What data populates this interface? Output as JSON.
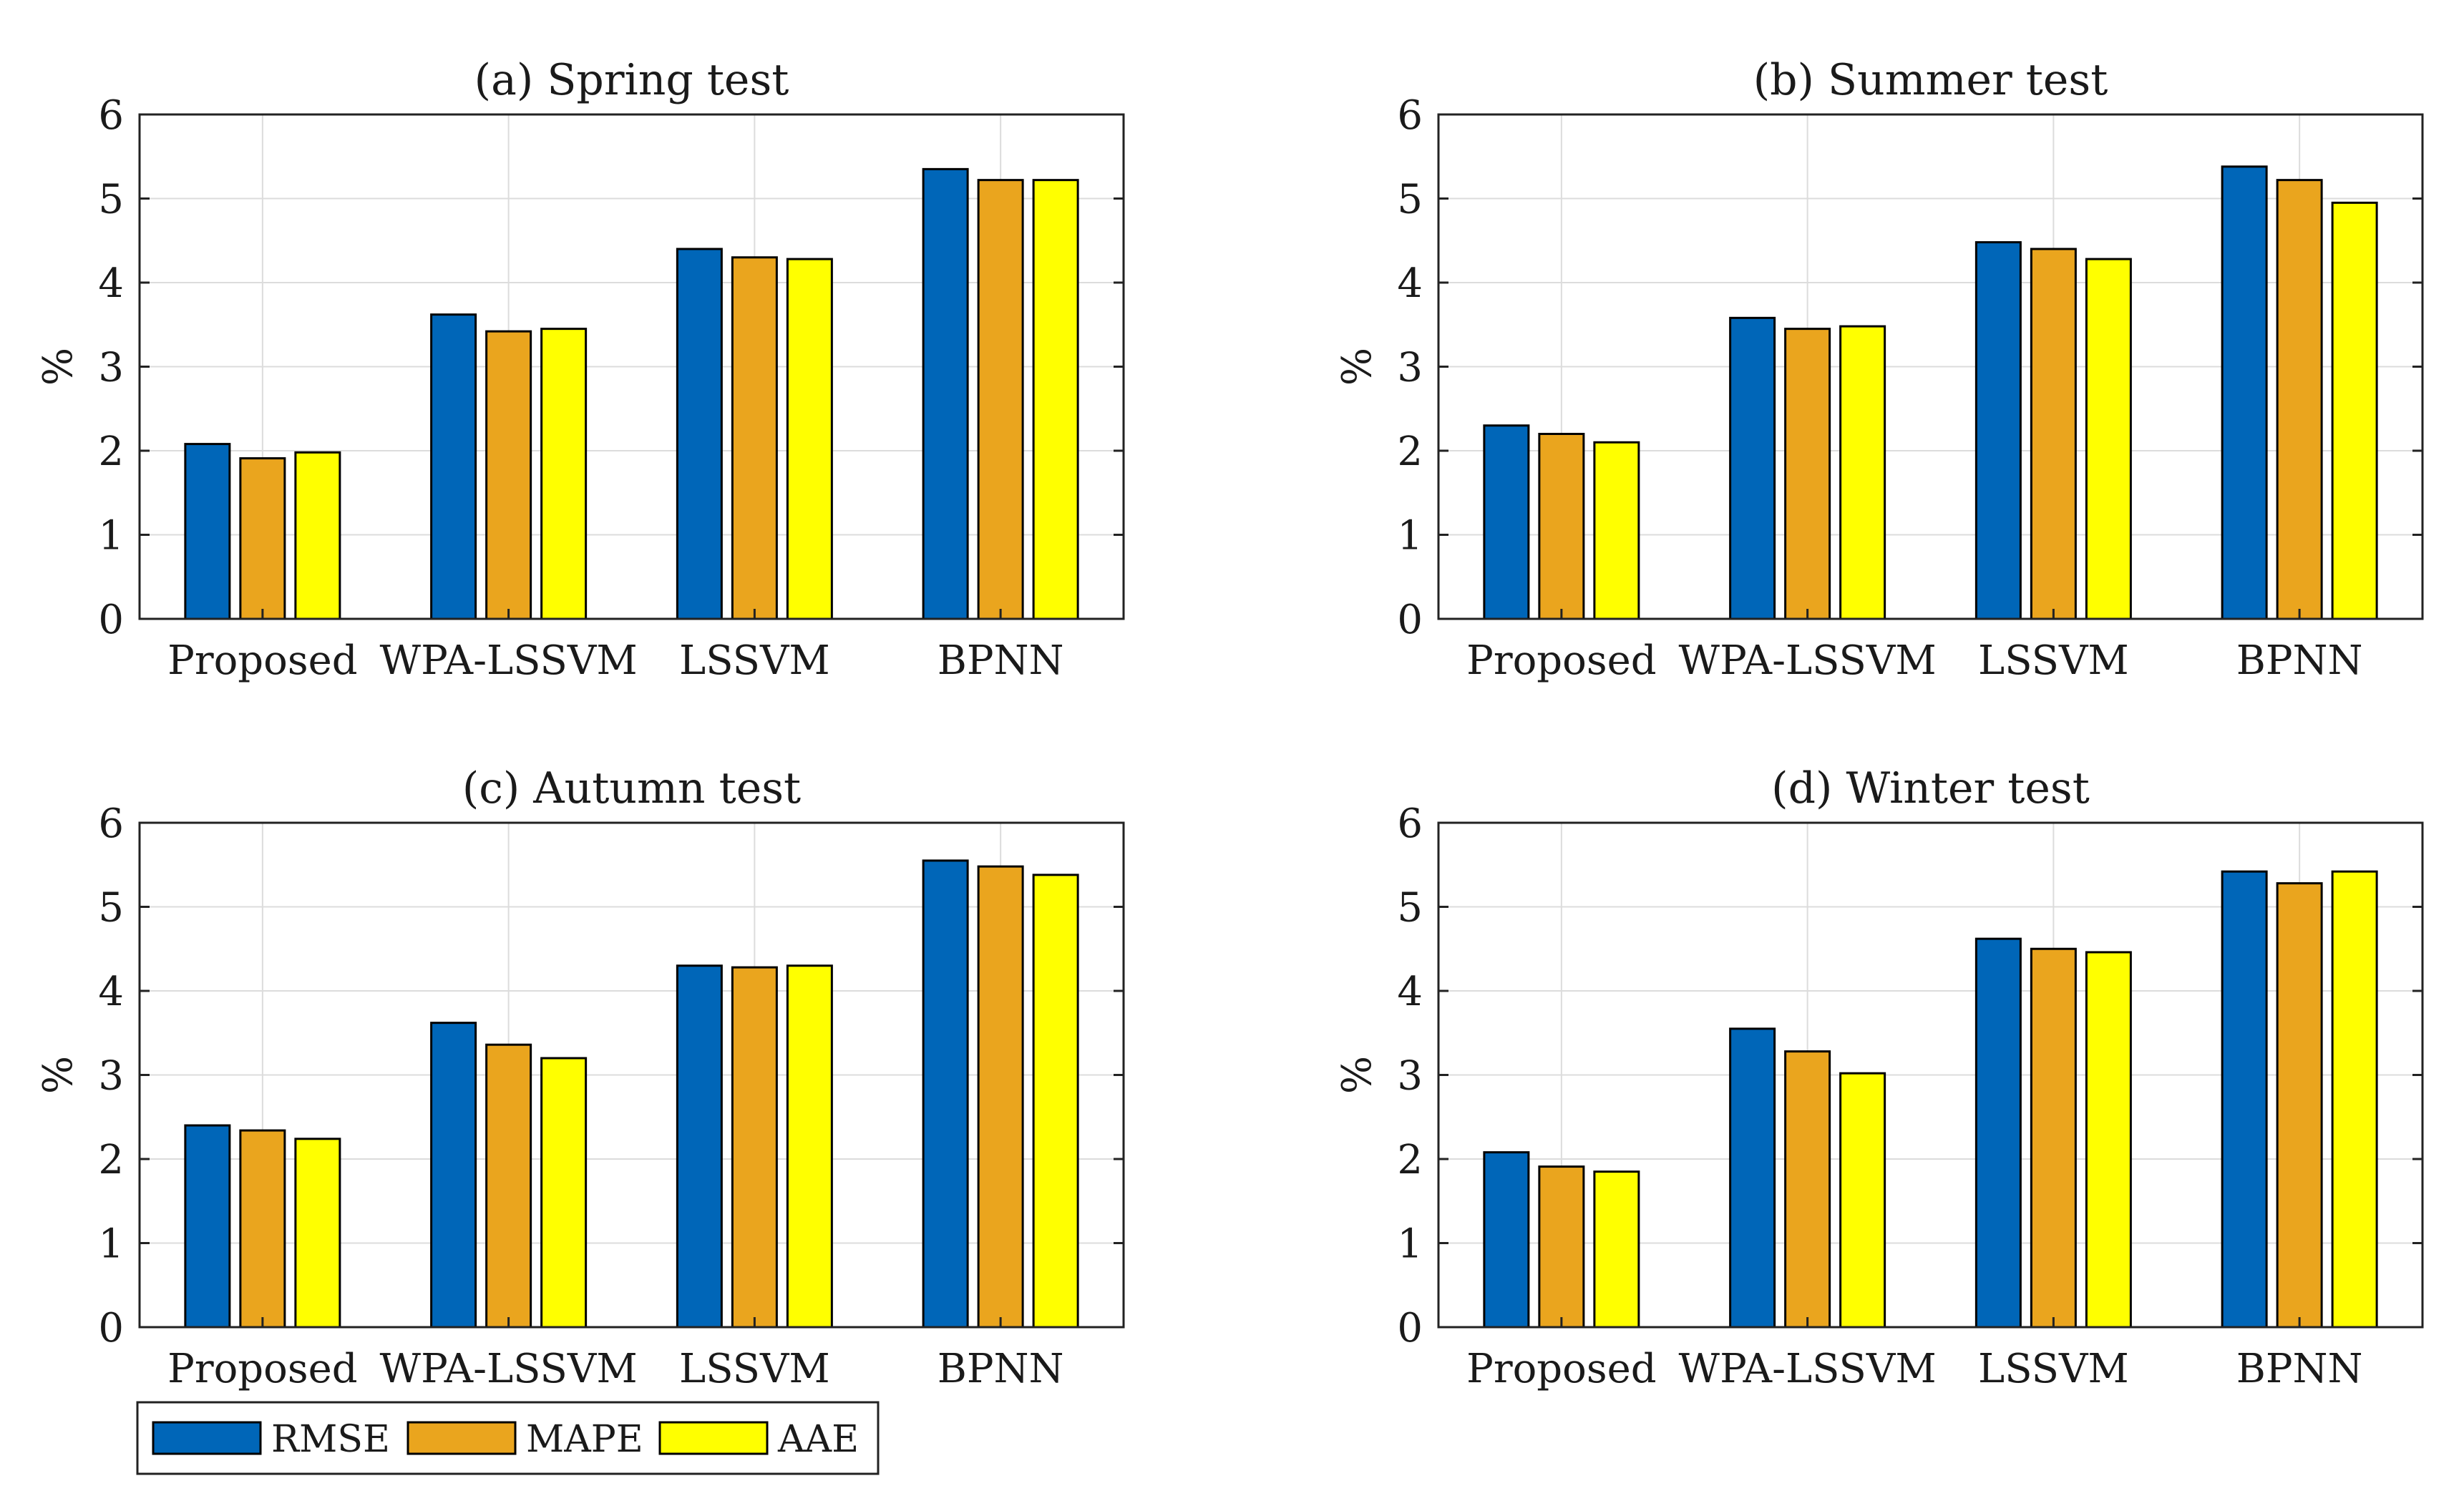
{
  "colors": {
    "rmse": "#0066b8",
    "mape": "#eaa51e",
    "aae": "#ffff00",
    "grid": "#dcdcdc",
    "axis": "#222222",
    "bar_stroke": "#000000"
  },
  "legend": {
    "items": [
      {
        "label": "RMSE",
        "color_key": "rmse"
      },
      {
        "label": "MAPE",
        "color_key": "mape"
      },
      {
        "label": "AAE",
        "color_key": "aae"
      }
    ]
  },
  "chart_data": [
    {
      "type": "bar",
      "title": "(a) Spring test",
      "xlabel": "",
      "ylabel": "%",
      "ylim": [
        0,
        6
      ],
      "yticks": [
        "0",
        "1",
        "2",
        "3",
        "4",
        "5",
        "6"
      ],
      "grid": true,
      "categories": [
        "Proposed",
        "WPA-LSSVM",
        "LSSVM",
        "BPNN"
      ],
      "series": [
        {
          "name": "RMSE",
          "color_key": "rmse",
          "values": [
            2.08,
            3.62,
            4.4,
            5.35
          ]
        },
        {
          "name": "MAPE",
          "color_key": "mape",
          "values": [
            1.91,
            3.42,
            4.3,
            5.22
          ]
        },
        {
          "name": "AAE",
          "color_key": "aae",
          "values": [
            1.98,
            3.45,
            4.28,
            5.22
          ]
        }
      ]
    },
    {
      "type": "bar",
      "title": "(b) Summer test",
      "xlabel": "",
      "ylabel": "%",
      "ylim": [
        0,
        6
      ],
      "yticks": [
        "0",
        "1",
        "2",
        "3",
        "4",
        "5",
        "6"
      ],
      "grid": true,
      "categories": [
        "Proposed",
        "WPA-LSSVM",
        "LSSVM",
        "BPNN"
      ],
      "series": [
        {
          "name": "RMSE",
          "color_key": "rmse",
          "values": [
            2.3,
            3.58,
            4.48,
            5.38
          ]
        },
        {
          "name": "MAPE",
          "color_key": "mape",
          "values": [
            2.2,
            3.45,
            4.4,
            5.22
          ]
        },
        {
          "name": "AAE",
          "color_key": "aae",
          "values": [
            2.1,
            3.48,
            4.28,
            4.95
          ]
        }
      ]
    },
    {
      "type": "bar",
      "title": "(c) Autumn test",
      "xlabel": "",
      "ylabel": "%",
      "ylim": [
        0,
        6
      ],
      "yticks": [
        "0",
        "1",
        "2",
        "3",
        "4",
        "5",
        "6"
      ],
      "grid": true,
      "categories": [
        "Proposed",
        "WPA-LSSVM",
        "LSSVM",
        "BPNN"
      ],
      "series": [
        {
          "name": "RMSE",
          "color_key": "rmse",
          "values": [
            2.4,
            3.62,
            4.3,
            5.55
          ]
        },
        {
          "name": "MAPE",
          "color_key": "mape",
          "values": [
            2.34,
            3.36,
            4.28,
            5.48
          ]
        },
        {
          "name": "AAE",
          "color_key": "aae",
          "values": [
            2.24,
            3.2,
            4.3,
            5.38
          ]
        }
      ]
    },
    {
      "type": "bar",
      "title": "(d) Winter test",
      "xlabel": "",
      "ylabel": "%",
      "ylim": [
        0,
        6
      ],
      "yticks": [
        "0",
        "1",
        "2",
        "3",
        "4",
        "5",
        "6"
      ],
      "grid": true,
      "categories": [
        "Proposed",
        "WPA-LSSVM",
        "LSSVM",
        "BPNN"
      ],
      "series": [
        {
          "name": "RMSE",
          "color_key": "rmse",
          "values": [
            2.08,
            3.55,
            4.62,
            5.42
          ]
        },
        {
          "name": "MAPE",
          "color_key": "mape",
          "values": [
            1.91,
            3.28,
            4.5,
            5.28
          ]
        },
        {
          "name": "AAE",
          "color_key": "aae",
          "values": [
            1.85,
            3.02,
            4.46,
            5.42
          ]
        }
      ]
    }
  ]
}
